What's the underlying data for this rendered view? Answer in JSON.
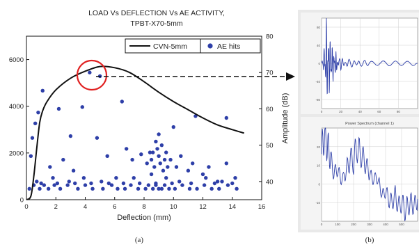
{
  "chart_data": [
    {
      "type": "scatter",
      "title": "LOAD Vs DEFLECTION Vs AE ACTIVITY,",
      "subtitle": "TPBT-X70-5mm",
      "xlabel": "Deflection (mm)",
      "ylabel": "",
      "y2label": "Amplitude (dB)",
      "xlim": [
        0,
        16
      ],
      "ylim": [
        0,
        7000
      ],
      "y2lim": [
        35,
        80
      ],
      "xticks": [
        0,
        2,
        4,
        6,
        8,
        10,
        12,
        14,
        16
      ],
      "yticks": [
        0,
        2000,
        4000,
        6000
      ],
      "y2ticks": [
        40,
        50,
        60,
        70,
        80
      ],
      "legend_position": "top-right",
      "grid": false,
      "series": [
        {
          "name": "CVN-5mm",
          "type": "line",
          "axis": "left",
          "color": "#111111",
          "x": [
            0,
            0.3,
            0.5,
            0.7,
            0.9,
            1.1,
            1.4,
            2.0,
            3.0,
            4.0,
            5.0,
            6.0,
            7.0,
            8.0,
            9.0,
            10.0,
            11.0,
            12.0,
            13.0,
            14.0,
            14.8
          ],
          "y": [
            0,
            150,
            1000,
            2200,
            3300,
            3800,
            4200,
            4700,
            5200,
            5500,
            5700,
            5650,
            5450,
            5050,
            4600,
            4200,
            3850,
            3500,
            3200,
            3000,
            2850
          ]
        },
        {
          "name": "AE hits",
          "type": "scatter",
          "axis": "right",
          "color": "#2e3fa8",
          "x": [
            4.3,
            5.0,
            1.1,
            2.2,
            3.8,
            6.5,
            3.0,
            8.8,
            9.0,
            9.2,
            8.6,
            10.0,
            11.5,
            13.6,
            0.6,
            0.4,
            0.3,
            0.8,
            1.6,
            2.5,
            3.2,
            4.8,
            5.5,
            6.8,
            7.2,
            7.8,
            8.2,
            8.4,
            8.5,
            8.7,
            8.9,
            9.0,
            9.1,
            9.3,
            9.4,
            9.5,
            9.6,
            9.8,
            10.2,
            10.5,
            11.0,
            11.3,
            12.0,
            12.4,
            13.0,
            13.6,
            14.2,
            0.2,
            0.5,
            0.9,
            1.2,
            1.5,
            1.9,
            2.3,
            2.8,
            3.5,
            4.0,
            4.5,
            5.2,
            5.8,
            6.2,
            6.7,
            7.1,
            7.6,
            8.1,
            8.3,
            8.6,
            8.8,
            9.0,
            9.2,
            9.4,
            9.7,
            10.1,
            10.6,
            11.1,
            11.6,
            12.1,
            12.6,
            13.1,
            13.7,
            14.3,
            0.7,
            1.8,
            2.9,
            3.9,
            5.1,
            6.1,
            7.3,
            8.5,
            9.5,
            10.4,
            12.2,
            13.3,
            1.0,
            2.1,
            3.3,
            4.4,
            5.6,
            6.6,
            7.7,
            8.8,
            9.9,
            11.2,
            12.8,
            14.0
          ],
          "y": [
            70,
            69,
            65,
            60,
            60.5,
            62,
            52.5,
            51,
            53,
            50,
            48,
            55,
            58,
            57.5,
            56,
            52,
            47,
            59,
            44,
            46,
            43,
            52,
            47,
            49,
            46,
            47.5,
            45,
            48,
            46,
            44,
            49,
            47,
            45,
            43,
            46,
            48,
            44,
            46,
            44,
            47,
            43,
            45,
            42,
            44,
            40,
            45,
            41,
            38,
            39,
            38,
            39,
            38,
            39,
            38,
            39,
            38,
            39,
            38,
            38,
            39,
            38,
            38,
            39,
            38,
            38,
            39,
            38,
            39,
            38,
            38,
            39,
            38,
            38,
            39,
            38,
            38,
            39,
            38,
            38,
            39,
            38,
            40,
            41,
            40,
            41,
            40,
            41,
            41,
            42,
            41,
            40,
            41,
            40,
            39.5,
            39.5,
            39.5,
            39.5,
            39.5,
            39.5,
            39.5,
            39.5,
            39.5,
            39.5,
            39.5,
            39.5
          ]
        }
      ],
      "caption": "(a)"
    },
    {
      "type": "line",
      "caption": "(b)",
      "subplots": [
        {
          "name": "waveform",
          "title": "",
          "color": "#2e3fa8",
          "ylim": [
            -100,
            100
          ],
          "xlim": [
            0,
            100
          ],
          "yticks": [
            -80,
            -40,
            0,
            40,
            80
          ],
          "xticks": [
            0,
            20,
            40,
            60,
            80
          ],
          "x": [
            0,
            2,
            3,
            4,
            5,
            6,
            7,
            8,
            9,
            10,
            11,
            12,
            13,
            14,
            15,
            16,
            18,
            20,
            22,
            25,
            28,
            32,
            36,
            40,
            45,
            50,
            60,
            70,
            80,
            90,
            100
          ],
          "y": [
            0,
            0,
            30,
            -40,
            80,
            -70,
            55,
            -50,
            40,
            -38,
            30,
            -28,
            22,
            -20,
            16,
            -14,
            10,
            -8,
            6,
            -5,
            4,
            -3,
            2.5,
            -2,
            1.5,
            -1,
            0.8,
            -0.5,
            0.4,
            -0.3,
            0.2
          ]
        },
        {
          "name": "power-spectrum",
          "title": "Power Spectrum (channel 1)",
          "color": "#2e3fa8",
          "ylim": [
            -20,
            30
          ],
          "xlim": [
            0,
            600
          ],
          "yticks": [
            -10,
            0,
            10,
            20
          ],
          "xticks": [
            0,
            100,
            200,
            300,
            400,
            500
          ],
          "x": [
            0,
            15,
            30,
            45,
            60,
            80,
            100,
            120,
            140,
            160,
            180,
            200,
            220,
            240,
            260,
            280,
            300,
            320,
            340,
            360,
            380,
            400,
            420,
            440,
            460,
            480,
            500,
            520,
            540,
            560,
            580,
            600
          ],
          "y": [
            16,
            26,
            22,
            18,
            12,
            6,
            8,
            2,
            4,
            8,
            14,
            12,
            20,
            16,
            14,
            10,
            6,
            2,
            4,
            0,
            -6,
            -4,
            -8,
            -10,
            -6,
            -12,
            -10,
            -14,
            -12,
            -10,
            -12,
            -8
          ]
        }
      ]
    }
  ]
}
